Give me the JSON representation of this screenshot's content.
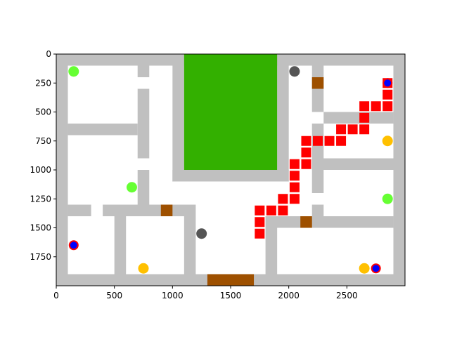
{
  "chart_data": {
    "type": "scatter",
    "title": "",
    "xlabel": "",
    "ylabel": "",
    "xlim": [
      0,
      3000
    ],
    "ylim": [
      2000,
      0
    ],
    "y_inverted": true,
    "grid": false,
    "xticks": [
      0,
      500,
      1000,
      1500,
      2000,
      2500
    ],
    "yticks": [
      0,
      250,
      500,
      750,
      1000,
      1250,
      1500,
      1750
    ],
    "colors": {
      "wall": "#c0c0c0",
      "green_area": "#33b000",
      "door": "#9e5000",
      "path": "#ff0000",
      "green_dot": "#66ff33",
      "gray_dot": "#555555",
      "orange_dot": "#ffc000",
      "blue_dot": "#0000ff",
      "blue_dot_edge": "#ff0000"
    },
    "walls": [
      {
        "x": [
          0,
          3000
        ],
        "y": [
          0,
          100
        ]
      },
      {
        "x": [
          0,
          3000
        ],
        "y": [
          1900,
          2000
        ]
      },
      {
        "x": [
          0,
          100
        ],
        "y": [
          0,
          2000
        ]
      },
      {
        "x": [
          2900,
          3000
        ],
        "y": [
          0,
          2000
        ]
      },
      {
        "x": [
          100,
          700
        ],
        "y": [
          600,
          700
        ]
      },
      {
        "x": [
          100,
          300
        ],
        "y": [
          1300,
          1400
        ]
      },
      {
        "x": [
          400,
          1200
        ],
        "y": [
          1300,
          1400
        ]
      },
      {
        "x": [
          700,
          800
        ],
        "y": [
          100,
          200
        ]
      },
      {
        "x": [
          700,
          800
        ],
        "y": [
          300,
          900
        ]
      },
      {
        "x": [
          700,
          800
        ],
        "y": [
          1000,
          1300
        ]
      },
      {
        "x": [
          500,
          600
        ],
        "y": [
          1400,
          1900
        ]
      },
      {
        "x": [
          1100,
          1200
        ],
        "y": [
          1400,
          1900
        ]
      },
      {
        "x": [
          1000,
          1100
        ],
        "y": [
          100,
          1100
        ]
      },
      {
        "x": [
          1000,
          2000
        ],
        "y": [
          1000,
          1100
        ]
      },
      {
        "x": [
          1900,
          2000
        ],
        "y": [
          100,
          1100
        ]
      },
      {
        "x": [
          2200,
          2300
        ],
        "y": [
          100,
          500
        ]
      },
      {
        "x": [
          2200,
          2300
        ],
        "y": [
          600,
          1200
        ]
      },
      {
        "x": [
          2200,
          2300
        ],
        "y": [
          1300,
          1400
        ]
      },
      {
        "x": [
          2200,
          3000
        ],
        "y": [
          900,
          1000
        ]
      },
      {
        "x": [
          2300,
          2700
        ],
        "y": [
          500,
          600
        ]
      },
      {
        "x": [
          2700,
          2900
        ],
        "y": [
          500,
          600
        ]
      },
      {
        "x": [
          1800,
          2900
        ],
        "y": [
          1400,
          1500
        ]
      },
      {
        "x": [
          1800,
          1900
        ],
        "y": [
          1500,
          1900
        ]
      }
    ],
    "green_area": {
      "x": [
        1100,
        1900
      ],
      "y": [
        0,
        1000
      ]
    },
    "doors": [
      {
        "x": [
          2200,
          2300
        ],
        "y": [
          200,
          300
        ]
      },
      {
        "x": [
          900,
          1000
        ],
        "y": [
          1300,
          1400
        ]
      },
      {
        "x": [
          2100,
          2200
        ],
        "y": [
          1400,
          1500
        ]
      },
      {
        "x": [
          1300,
          1700
        ],
        "y": [
          1900,
          2000
        ]
      }
    ],
    "path": [
      [
        1750,
        1350
      ],
      [
        1750,
        1450
      ],
      [
        1750,
        1550
      ],
      [
        1850,
        1350
      ],
      [
        1950,
        1350
      ],
      [
        1950,
        1250
      ],
      [
        2050,
        1250
      ],
      [
        2050,
        1150
      ],
      [
        2050,
        1050
      ],
      [
        2050,
        950
      ],
      [
        2150,
        950
      ],
      [
        2150,
        850
      ],
      [
        2150,
        750
      ],
      [
        2250,
        750
      ],
      [
        2350,
        750
      ],
      [
        2450,
        750
      ],
      [
        2450,
        650
      ],
      [
        2550,
        650
      ],
      [
        2650,
        650
      ],
      [
        2650,
        550
      ],
      [
        2650,
        450
      ],
      [
        2750,
        450
      ],
      [
        2850,
        450
      ],
      [
        2850,
        350
      ],
      [
        2850,
        250
      ]
    ],
    "markers": [
      {
        "kind": "green",
        "x": 150,
        "y": 150
      },
      {
        "kind": "green",
        "x": 650,
        "y": 1150
      },
      {
        "kind": "green",
        "x": 2850,
        "y": 1250
      },
      {
        "kind": "gray",
        "x": 2050,
        "y": 150
      },
      {
        "kind": "gray",
        "x": 1250,
        "y": 1550
      },
      {
        "kind": "orange",
        "x": 2850,
        "y": 750
      },
      {
        "kind": "orange",
        "x": 750,
        "y": 1850
      },
      {
        "kind": "orange",
        "x": 2650,
        "y": 1850
      },
      {
        "kind": "blue",
        "x": 2850,
        "y": 250
      },
      {
        "kind": "blue",
        "x": 150,
        "y": 1650
      },
      {
        "kind": "blue",
        "x": 2750,
        "y": 1850
      }
    ]
  }
}
